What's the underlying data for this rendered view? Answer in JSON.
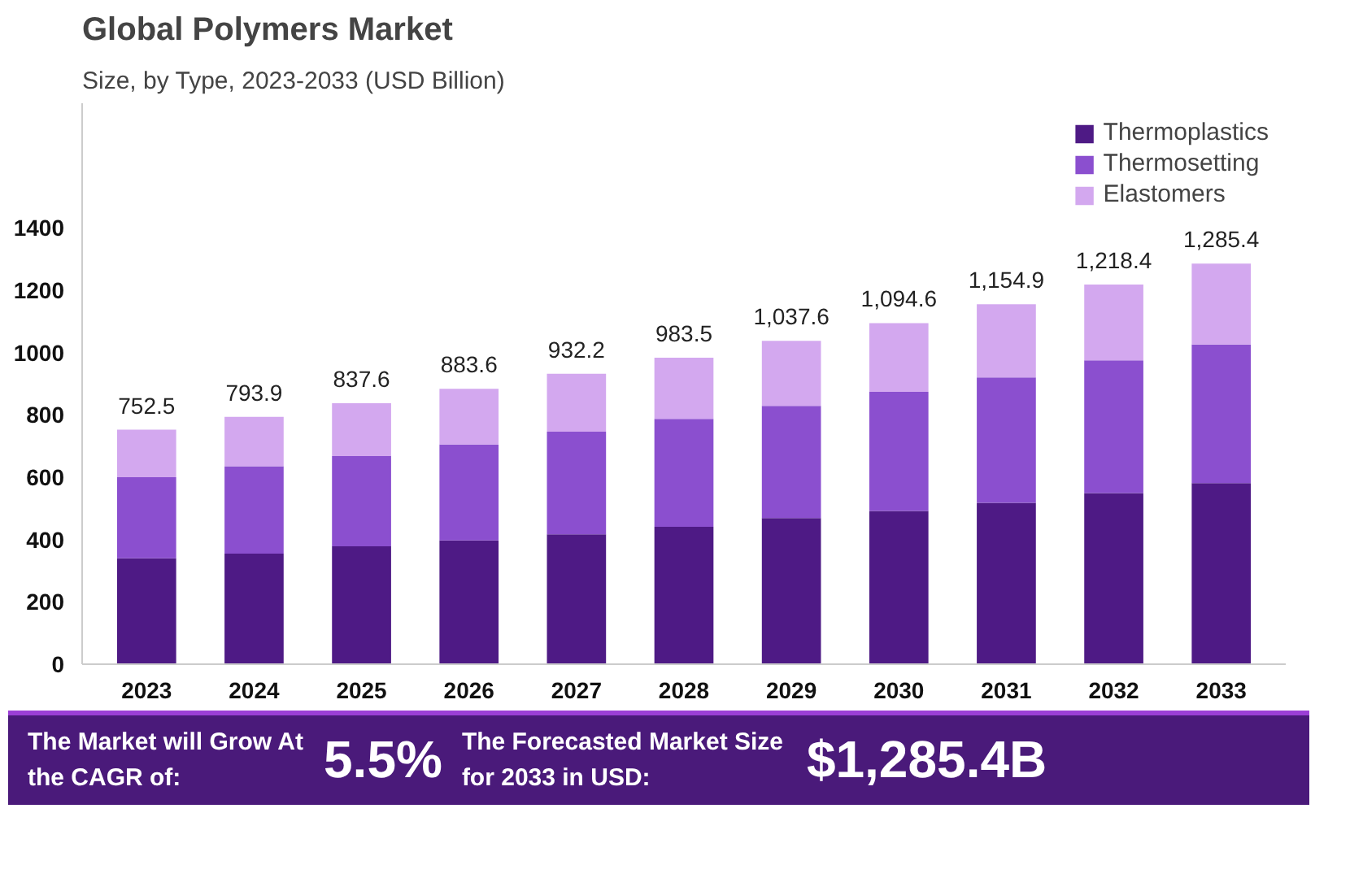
{
  "chart_data": {
    "type": "bar",
    "stacked": true,
    "title": "Global Polymers Market",
    "subtitle": "Size, by Type, 2023-2033 (USD Billion)",
    "categories": [
      "2023",
      "2024",
      "2025",
      "2026",
      "2027",
      "2028",
      "2029",
      "2030",
      "2031",
      "2032",
      "2033"
    ],
    "series": [
      {
        "name": "Thermoplastics",
        "color": "#4e1a85",
        "values": [
          340,
          355,
          378,
          397,
          417,
          441,
          469,
          492,
          518,
          549,
          581
        ]
      },
      {
        "name": "Thermosetting",
        "color": "#8b4fcf",
        "values": [
          260,
          280,
          290,
          308,
          329,
          346,
          360,
          382,
          402,
          426,
          445
        ]
      },
      {
        "name": "Elastomers",
        "color": "#d3a8ef",
        "values": [
          152.5,
          158.9,
          169.6,
          178.6,
          186.2,
          196.5,
          208.6,
          220.6,
          234.9,
          243.4,
          259.4
        ]
      }
    ],
    "totals": [
      "752.5",
      "793.9",
      "837.6",
      "883.6",
      "932.2",
      "983.5",
      "1,037.6",
      "1,094.6",
      "1,154.9",
      "1,218.4",
      "1,285.4"
    ],
    "ylim": [
      0,
      1800
    ],
    "yticks": [
      0,
      200,
      400,
      600,
      800,
      1000,
      1200,
      1400
    ],
    "legend": "top right",
    "annotations": [
      "The Market will Grow At the CAGR of:",
      "5.5%",
      "The Forecasted Market Size for 2033 in USD:",
      "$1,285.4B"
    ]
  }
}
